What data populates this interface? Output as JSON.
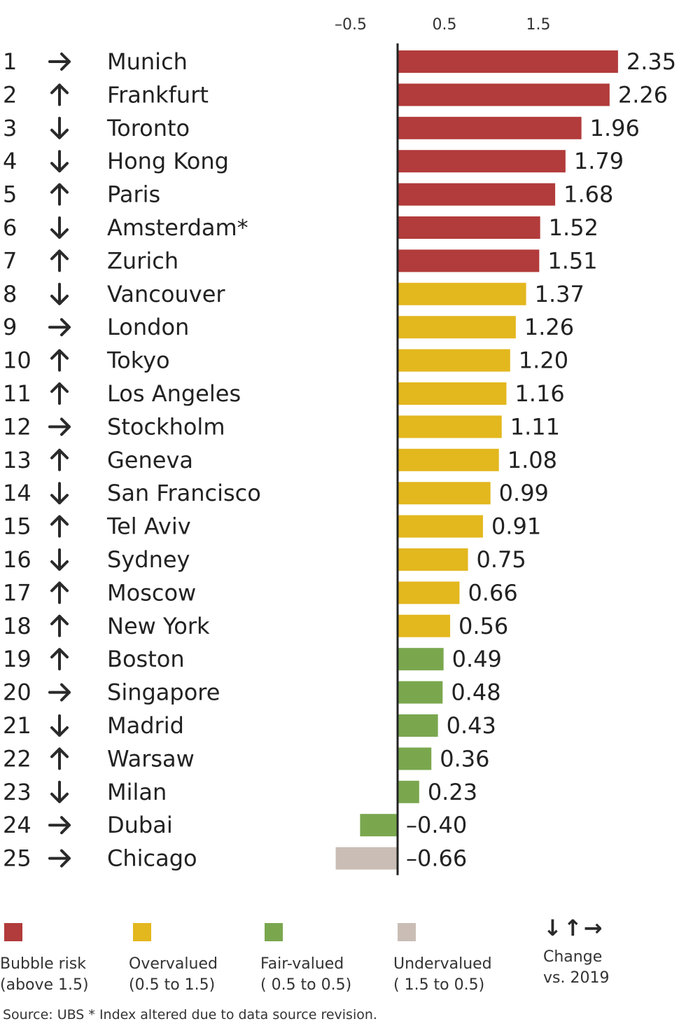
{
  "chart_data": {
    "type": "bar",
    "orientation": "horizontal",
    "x_ticks": [
      "–0.5",
      "0.5",
      "1.5"
    ],
    "x_tick_values": [
      -0.5,
      0.5,
      1.5
    ],
    "xlim": [
      -0.75,
      2.55
    ],
    "rows": [
      {
        "rank": "1",
        "change": "right",
        "city": "Munich",
        "value": 2.35,
        "label": "2.35",
        "category": "bubble"
      },
      {
        "rank": "2",
        "change": "up",
        "city": "Frankfurt",
        "value": 2.26,
        "label": "2.26",
        "category": "bubble"
      },
      {
        "rank": "3",
        "change": "down",
        "city": "Toronto",
        "value": 1.96,
        "label": "1.96",
        "category": "bubble"
      },
      {
        "rank": "4",
        "change": "down",
        "city": "Hong Kong",
        "value": 1.79,
        "label": "1.79",
        "category": "bubble"
      },
      {
        "rank": "5",
        "change": "up",
        "city": "Paris",
        "value": 1.68,
        "label": "1.68",
        "category": "bubble"
      },
      {
        "rank": "6",
        "change": "down",
        "city": "Amsterdam*",
        "value": 1.52,
        "label": "1.52",
        "category": "bubble"
      },
      {
        "rank": "7",
        "change": "up",
        "city": "Zurich",
        "value": 1.51,
        "label": "1.51",
        "category": "bubble"
      },
      {
        "rank": "8",
        "change": "down",
        "city": "Vancouver",
        "value": 1.37,
        "label": "1.37",
        "category": "overvalued"
      },
      {
        "rank": "9",
        "change": "right",
        "city": "London",
        "value": 1.26,
        "label": "1.26",
        "category": "overvalued"
      },
      {
        "rank": "10",
        "change": "up",
        "city": "Tokyo",
        "value": 1.2,
        "label": "1.20",
        "category": "overvalued"
      },
      {
        "rank": "11",
        "change": "up",
        "city": "Los Angeles",
        "value": 1.16,
        "label": "1.16",
        "category": "overvalued"
      },
      {
        "rank": "12",
        "change": "right",
        "city": "Stockholm",
        "value": 1.11,
        "label": "1.11",
        "category": "overvalued"
      },
      {
        "rank": "13",
        "change": "up",
        "city": "Geneva",
        "value": 1.08,
        "label": "1.08",
        "category": "overvalued"
      },
      {
        "rank": "14",
        "change": "down",
        "city": "San Francisco",
        "value": 0.99,
        "label": "0.99",
        "category": "overvalued"
      },
      {
        "rank": "15",
        "change": "up",
        "city": "Tel Aviv",
        "value": 0.91,
        "label": "0.91",
        "category": "overvalued"
      },
      {
        "rank": "16",
        "change": "down",
        "city": "Sydney",
        "value": 0.75,
        "label": "0.75",
        "category": "overvalued"
      },
      {
        "rank": "17",
        "change": "up",
        "city": "Moscow",
        "value": 0.66,
        "label": "0.66",
        "category": "overvalued"
      },
      {
        "rank": "18",
        "change": "up",
        "city": "New York",
        "value": 0.56,
        "label": "0.56",
        "category": "overvalued"
      },
      {
        "rank": "19",
        "change": "up",
        "city": "Boston",
        "value": 0.49,
        "label": "0.49",
        "category": "fair"
      },
      {
        "rank": "20",
        "change": "right",
        "city": "Singapore",
        "value": 0.48,
        "label": "0.48",
        "category": "fair"
      },
      {
        "rank": "21",
        "change": "down",
        "city": "Madrid",
        "value": 0.43,
        "label": "0.43",
        "category": "fair"
      },
      {
        "rank": "22",
        "change": "up",
        "city": "Warsaw",
        "value": 0.36,
        "label": "0.36",
        "category": "fair"
      },
      {
        "rank": "23",
        "change": "down",
        "city": "Milan",
        "value": 0.23,
        "label": "0.23",
        "category": "fair"
      },
      {
        "rank": "24",
        "change": "right",
        "city": "Dubai",
        "value": -0.4,
        "label": "–0.40",
        "category": "fair"
      },
      {
        "rank": "25",
        "change": "right",
        "city": "Chicago",
        "value": -0.66,
        "label": "–0.66",
        "category": "undervalued"
      }
    ],
    "colors": {
      "bubble": "#b23b3b",
      "overvalued": "#e3b71e",
      "fair": "#7aa74e",
      "undervalued": "#c9bdb5"
    }
  },
  "legend": {
    "bubble": {
      "line1": "Bubble risk",
      "line2": "(above 1.5)"
    },
    "overvalued": {
      "line1": "Overvalued",
      "line2": "(0.5 to 1.5)"
    },
    "fair": {
      "line1": "Fair-valued",
      "line2": "( 0.5 to 0.5)"
    },
    "undervalued": {
      "line1": "Undervalued",
      "line2": "( 1.5 to   0.5)"
    },
    "change": {
      "arrows": "↓↑→",
      "line1": "Change",
      "line2": "vs. 2019"
    }
  },
  "source": "Source: UBS  * Index altered due to data source revision."
}
